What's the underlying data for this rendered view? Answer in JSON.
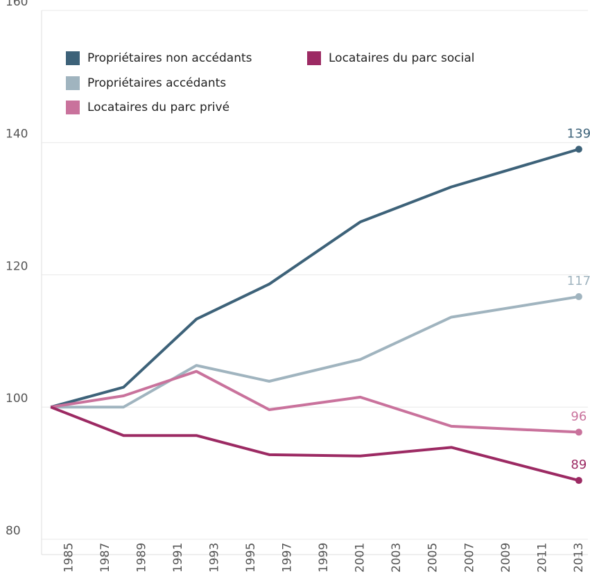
{
  "chart_data": {
    "type": "line",
    "x": [
      1984,
      1988,
      1992,
      1996,
      2001,
      2006,
      2013
    ],
    "series": [
      {
        "name": "Propriétaires non accédants",
        "color": "#3d6279",
        "values": [
          100,
          103,
          113.3,
          118.6,
          128,
          133.3,
          139
        ],
        "value_labels": [
          null,
          null,
          null,
          null,
          null,
          null,
          "139"
        ]
      },
      {
        "name": "Propriétaires accédants",
        "color": "#a0b4bf",
        "values": [
          100,
          100,
          106.3,
          103.9,
          107.2,
          113.6,
          116.7
        ],
        "value_labels": [
          null,
          null,
          null,
          null,
          null,
          null,
          "117"
        ]
      },
      {
        "name": "Locataires du parc privé",
        "color": "#c9729c",
        "values": [
          100,
          101.7,
          105.4,
          99.6,
          101.5,
          97.1,
          96.2
        ],
        "value_labels": [
          null,
          null,
          null,
          null,
          null,
          null,
          "96"
        ]
      },
      {
        "name": "Locataires du parc social",
        "color": "#9c2a63",
        "values": [
          100,
          95.7,
          95.7,
          92.8,
          92.6,
          93.9,
          88.9
        ],
        "value_labels": [
          null,
          null,
          null,
          null,
          null,
          null,
          "89"
        ]
      }
    ],
    "xlim": [
      1983.5,
      2013.5
    ],
    "xticks": [
      1985,
      1987,
      1989,
      1991,
      1993,
      1995,
      1997,
      1999,
      2001,
      2003,
      2005,
      2007,
      2009,
      2011,
      2013
    ],
    "ylim": [
      78,
      160
    ],
    "yticks": [
      80,
      100,
      120,
      140,
      160
    ],
    "grid": true
  }
}
